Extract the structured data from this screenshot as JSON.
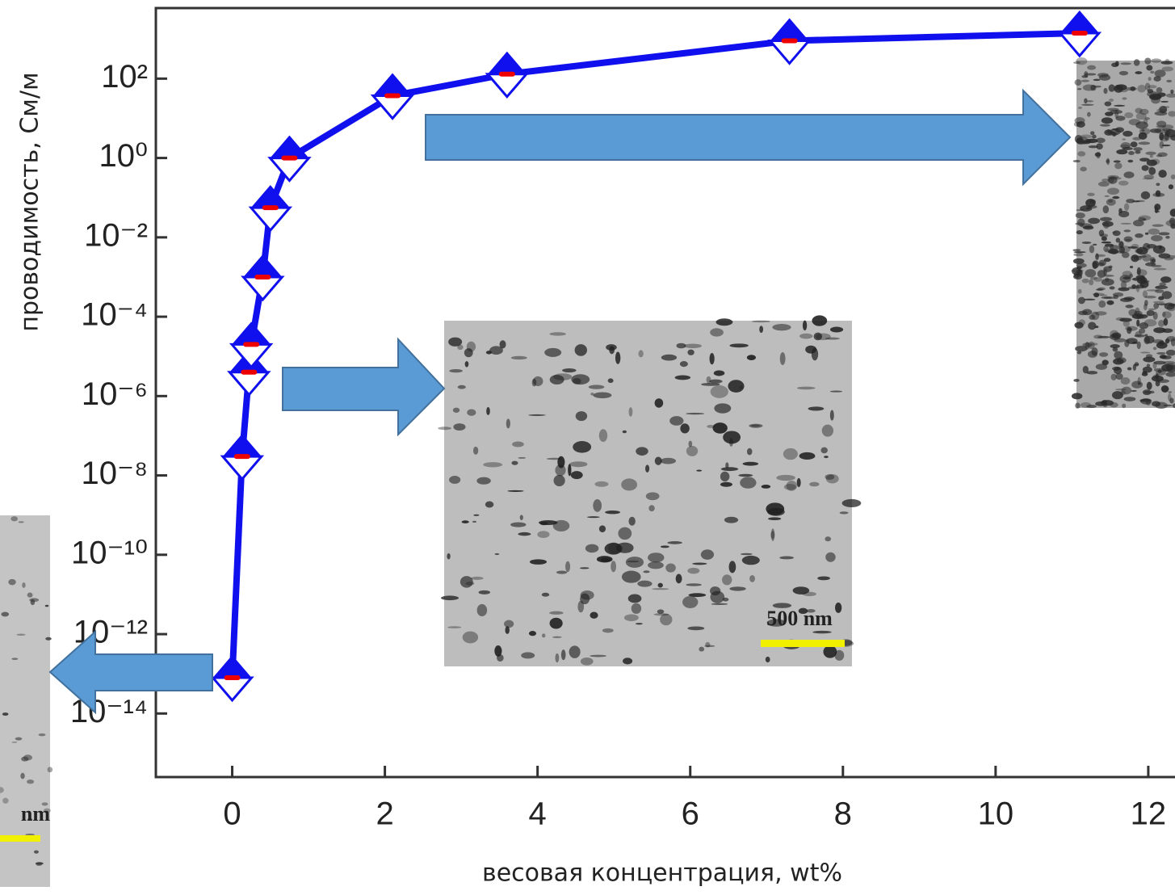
{
  "chart_data": {
    "type": "line",
    "x_label": "весовая концентрация, wt%",
    "y_label": "проводимость, См/м",
    "log_y": true,
    "xlim": [
      -1,
      12.35
    ],
    "ylim": [
      2.5e-16,
      6000
    ],
    "xticks": [
      0,
      2,
      4,
      6,
      8,
      10,
      12
    ],
    "yticks": [
      {
        "value": 1e-14,
        "label": "10⁻¹⁴"
      },
      {
        "value": 1e-12,
        "label": "10⁻¹²"
      },
      {
        "value": 1e-10,
        "label": "10⁻¹⁰"
      },
      {
        "value": 1e-08,
        "label": "10⁻⁸"
      },
      {
        "value": 1e-06,
        "label": "10⁻⁶"
      },
      {
        "value": 0.0001,
        "label": "10⁻⁴"
      },
      {
        "value": 0.01,
        "label": "10⁻²"
      },
      {
        "value": 1,
        "label": "10⁰"
      },
      {
        "value": 100,
        "label": "10²"
      }
    ],
    "series": [
      {
        "color": "#1010ee",
        "x": [
          0,
          0.13,
          0.22,
          0.25,
          0.4,
          0.5,
          0.75,
          2.1,
          3.6,
          7.3,
          11.1
        ],
        "values": [
          8e-14,
          3e-08,
          4e-06,
          2e-05,
          0.001,
          0.056,
          1,
          37,
          130,
          900,
          1400
        ]
      }
    ],
    "insets": [
      "500 nm",
      "nm"
    ]
  }
}
